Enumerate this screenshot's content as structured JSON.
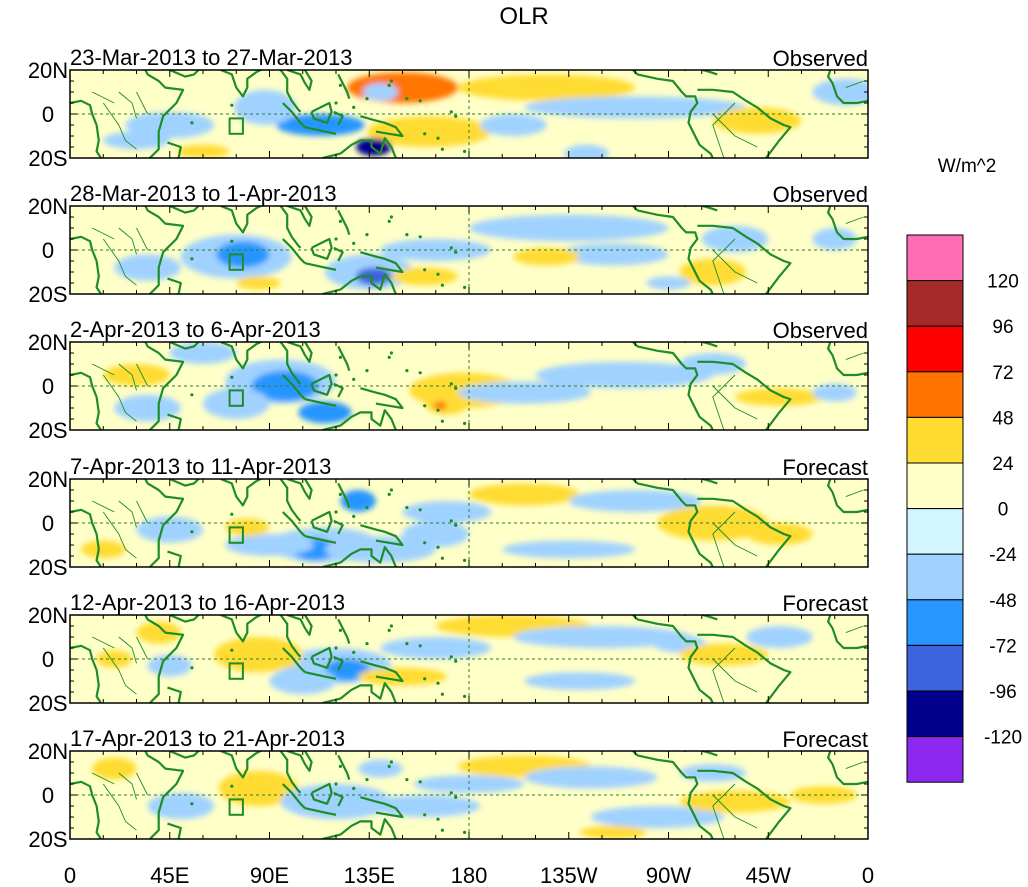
{
  "chart_data": {
    "type": "heatmap",
    "title": "OLR",
    "colorbar": {
      "unit": "W/m^2",
      "levels": [
        "120",
        "96",
        "72",
        "48",
        "24",
        "0",
        "-24",
        "-48",
        "-72",
        "-96",
        "-120"
      ],
      "colors": [
        "#ff6eb4",
        "#a52a2a",
        "#ff0000",
        "#ff7400",
        "#ffdc32",
        "#ffffc8",
        "#d2f5ff",
        "#a0d2ff",
        "#2896ff",
        "#3c64dc",
        "#00008c",
        "#8c28f0"
      ]
    },
    "x_ticks": [
      "0",
      "45E",
      "90E",
      "135E",
      "180",
      "135W",
      "90W",
      "45W",
      "0"
    ],
    "x_tick_values": [
      0,
      45,
      90,
      135,
      180,
      225,
      270,
      315,
      360
    ],
    "y_ticks": [
      "20N",
      "0",
      "20S"
    ],
    "y_tick_values": [
      20,
      0,
      -20
    ],
    "xlim": [
      0,
      360
    ],
    "ylim": [
      -20,
      20
    ],
    "panels": [
      {
        "period": "23-Mar-2013 to 27-Mar-2013",
        "kind": "Observed"
      },
      {
        "period": "28-Mar-2013 to 1-Apr-2013",
        "kind": "Observed"
      },
      {
        "period": "2-Apr-2013 to 6-Apr-2013",
        "kind": "Observed"
      },
      {
        "period": "7-Apr-2013 to 11-Apr-2013",
        "kind": "Forecast"
      },
      {
        "period": "12-Apr-2013 to 16-Apr-2013",
        "kind": "Forecast"
      },
      {
        "period": "17-Apr-2013 to 21-Apr-2013",
        "kind": "Forecast"
      }
    ],
    "blobs": [
      [
        [
          150,
          12,
          25,
          7,
          3
        ],
        [
          162,
          -8,
          28,
          7,
          4
        ],
        [
          137,
          -15,
          8,
          4,
          10
        ],
        [
          113,
          -5,
          20,
          5,
          8
        ],
        [
          88,
          3,
          14,
          8,
          7
        ],
        [
          215,
          12,
          40,
          6,
          4
        ],
        [
          255,
          3,
          50,
          5,
          7
        ],
        [
          45,
          -5,
          20,
          6,
          7
        ],
        [
          310,
          -3,
          20,
          6,
          4
        ],
        [
          140,
          10,
          8,
          4,
          7
        ],
        [
          350,
          10,
          15,
          6,
          7
        ],
        [
          233,
          -18,
          10,
          4,
          7
        ],
        [
          200,
          -5,
          15,
          5,
          7
        ],
        [
          60,
          -17,
          12,
          3,
          4
        ],
        [
          30,
          -12,
          15,
          4,
          7
        ]
      ],
      [
        [
          75,
          -3,
          25,
          10,
          7
        ],
        [
          78,
          -2,
          12,
          6,
          8
        ],
        [
          135,
          -10,
          20,
          8,
          7
        ],
        [
          137,
          -12,
          8,
          4,
          9
        ],
        [
          165,
          0,
          25,
          5,
          7
        ],
        [
          225,
          10,
          45,
          6,
          7
        ],
        [
          245,
          -2,
          25,
          5,
          7
        ],
        [
          85,
          -15,
          10,
          3,
          4
        ],
        [
          160,
          -12,
          15,
          4,
          4
        ],
        [
          290,
          -10,
          15,
          6,
          4
        ],
        [
          215,
          -3,
          15,
          4,
          4
        ],
        [
          35,
          -8,
          15,
          6,
          7
        ],
        [
          345,
          5,
          10,
          5,
          7
        ],
        [
          270,
          -15,
          10,
          3,
          7
        ],
        [
          300,
          5,
          15,
          6,
          7
        ]
      ],
      [
        [
          95,
          2,
          25,
          10,
          7
        ],
        [
          97,
          0,
          15,
          7,
          8
        ],
        [
          75,
          -8,
          15,
          7,
          7
        ],
        [
          115,
          -12,
          12,
          5,
          8
        ],
        [
          178,
          -2,
          25,
          8,
          4
        ],
        [
          170,
          -8,
          10,
          5,
          4
        ],
        [
          167,
          -9,
          3,
          2,
          3
        ],
        [
          205,
          -3,
          30,
          5,
          7
        ],
        [
          250,
          5,
          40,
          6,
          7
        ],
        [
          30,
          5,
          15,
          5,
          4
        ],
        [
          320,
          -5,
          20,
          4,
          4
        ],
        [
          290,
          10,
          15,
          5,
          7
        ],
        [
          35,
          -10,
          15,
          6,
          7
        ],
        [
          60,
          15,
          15,
          5,
          7
        ],
        [
          345,
          -3,
          10,
          4,
          7
        ]
      ],
      [
        [
          115,
          -10,
          25,
          8,
          7
        ],
        [
          110,
          -12,
          10,
          5,
          8
        ],
        [
          140,
          -12,
          25,
          6,
          7
        ],
        [
          90,
          -10,
          20,
          5,
          7
        ],
        [
          45,
          -3,
          15,
          6,
          7
        ],
        [
          205,
          13,
          25,
          5,
          4
        ],
        [
          255,
          10,
          30,
          5,
          7
        ],
        [
          290,
          0,
          25,
          8,
          4
        ],
        [
          320,
          -5,
          15,
          5,
          4
        ],
        [
          165,
          -5,
          15,
          6,
          7
        ],
        [
          170,
          5,
          20,
          5,
          7
        ],
        [
          80,
          -2,
          10,
          4,
          4
        ],
        [
          130,
          10,
          8,
          5,
          8
        ],
        [
          225,
          -12,
          30,
          4,
          7
        ],
        [
          15,
          -12,
          10,
          4,
          4
        ]
      ],
      [
        [
          120,
          -3,
          25,
          8,
          7
        ],
        [
          125,
          -5,
          10,
          5,
          8
        ],
        [
          105,
          -10,
          15,
          6,
          7
        ],
        [
          200,
          15,
          35,
          5,
          4
        ],
        [
          240,
          10,
          40,
          5,
          7
        ],
        [
          275,
          7,
          12,
          4,
          7
        ],
        [
          150,
          -8,
          20,
          4,
          4
        ],
        [
          85,
          2,
          20,
          8,
          4
        ],
        [
          295,
          2,
          20,
          5,
          4
        ],
        [
          45,
          -3,
          10,
          5,
          7
        ],
        [
          20,
          0,
          8,
          4,
          4
        ],
        [
          165,
          5,
          25,
          5,
          7
        ],
        [
          320,
          10,
          15,
          5,
          7
        ],
        [
          40,
          12,
          10,
          5,
          4
        ],
        [
          230,
          -10,
          25,
          4,
          7
        ]
      ],
      [
        [
          85,
          3,
          18,
          8,
          4
        ],
        [
          120,
          -3,
          25,
          8,
          7
        ],
        [
          125,
          -5,
          12,
          5,
          7
        ],
        [
          205,
          13,
          30,
          5,
          4
        ],
        [
          235,
          8,
          30,
          5,
          7
        ],
        [
          265,
          -10,
          30,
          5,
          7
        ],
        [
          160,
          -5,
          25,
          5,
          7
        ],
        [
          50,
          -5,
          15,
          6,
          7
        ],
        [
          300,
          -3,
          25,
          5,
          4
        ],
        [
          340,
          0,
          15,
          4,
          4
        ],
        [
          20,
          12,
          10,
          5,
          4
        ],
        [
          180,
          5,
          25,
          4,
          7
        ],
        [
          290,
          10,
          15,
          4,
          7
        ],
        [
          245,
          -17,
          15,
          3,
          4
        ],
        [
          140,
          12,
          10,
          4,
          7
        ]
      ]
    ]
  }
}
